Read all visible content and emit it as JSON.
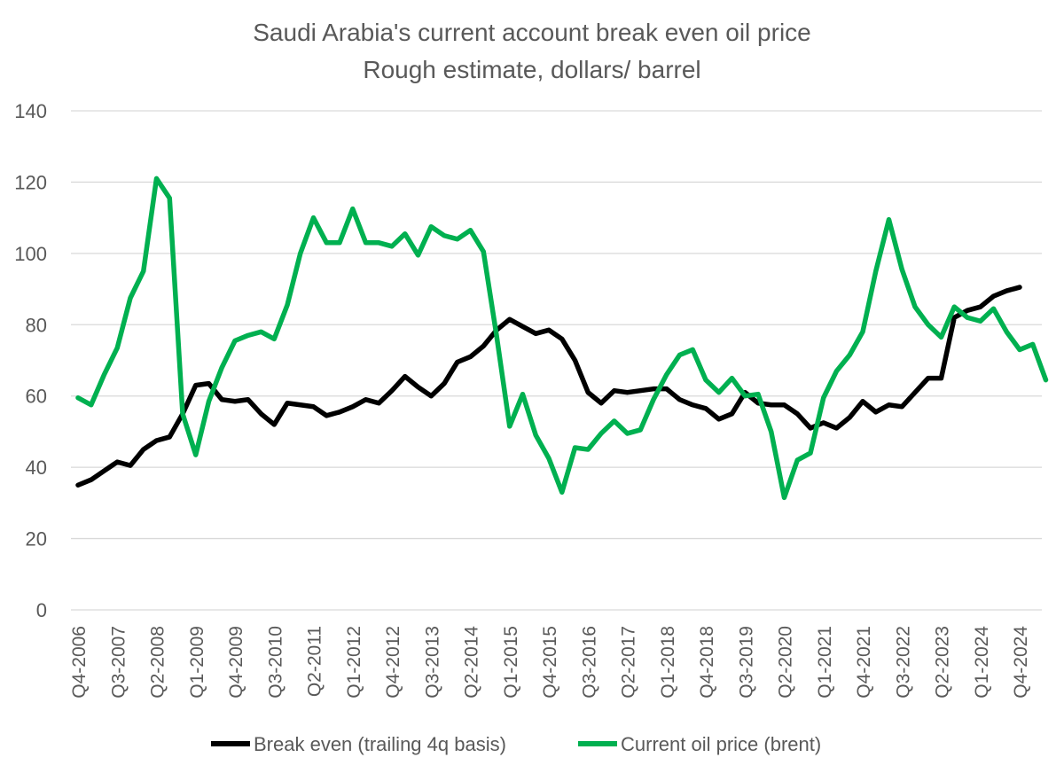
{
  "chart_data": {
    "type": "line",
    "title": "Saudi Arabia's current account break even oil price",
    "subtitle": "Rough estimate, dollars/ barrel",
    "ylim": [
      0,
      140
    ],
    "yticks": [
      0,
      20,
      40,
      60,
      80,
      100,
      120,
      140
    ],
    "grid": true,
    "legend_position": "bottom",
    "x_tick_labels": [
      "Q4-2006",
      "Q3-2007",
      "Q2-2008",
      "Q1-2009",
      "Q4-2009",
      "Q3-2010",
      "Q2-2011",
      "Q1-2012",
      "Q4-2012",
      "Q3-2013",
      "Q2-2014",
      "Q1-2015",
      "Q4-2015",
      "Q3-2016",
      "Q2-2017",
      "Q1-2018",
      "Q4-2018",
      "Q3-2019",
      "Q2-2020",
      "Q1-2021",
      "Q4-2021",
      "Q3-2022",
      "Q2-2023",
      "Q1-2024",
      "Q4-2024"
    ],
    "tick_every": 3,
    "series": [
      {
        "name": "Break even (trailing 4q basis)",
        "color": "#000000",
        "values": [
          35,
          36.5,
          39,
          41.5,
          40.5,
          45,
          47.5,
          48.5,
          55,
          63,
          63.5,
          59,
          58.5,
          59,
          55,
          52,
          58,
          57.5,
          57,
          54.5,
          55.5,
          57,
          59,
          58,
          61.5,
          65.5,
          62.5,
          60,
          63.5,
          69.5,
          71,
          74,
          78.5,
          81.5,
          79.5,
          77.5,
          78.5,
          76,
          70,
          61,
          58,
          61.5,
          61,
          61.5,
          62,
          62,
          59,
          57.5,
          56.5,
          53.5,
          55,
          61,
          58,
          57.5,
          57.5,
          55,
          51,
          52.5,
          51,
          54,
          58.5,
          55.5,
          57.5,
          57,
          61,
          65,
          65,
          82,
          84,
          85,
          88,
          89.5,
          90.5
        ]
      },
      {
        "name": "Current oil price (brent)",
        "color": "#00b050",
        "values": [
          59.5,
          57.5,
          66,
          73.5,
          87.5,
          95,
          121,
          115.5,
          55,
          43.5,
          58.5,
          68,
          75.5,
          77,
          78,
          76,
          85.5,
          100,
          110,
          103,
          103,
          112.5,
          103,
          103,
          102,
          105.5,
          99.5,
          107.5,
          105,
          104,
          106.5,
          100.5,
          77,
          51.5,
          60.5,
          49,
          42.5,
          33,
          45.5,
          45,
          49.5,
          53,
          49.5,
          50.5,
          59,
          66,
          71.5,
          73,
          64.5,
          61,
          65,
          60,
          60.5,
          50,
          31.5,
          42,
          44,
          59.5,
          67,
          71.5,
          78,
          95,
          109.5,
          95.5,
          85,
          80,
          76.5,
          85,
          82,
          81,
          84.5,
          78,
          73,
          74.5,
          64.5
        ]
      }
    ]
  }
}
